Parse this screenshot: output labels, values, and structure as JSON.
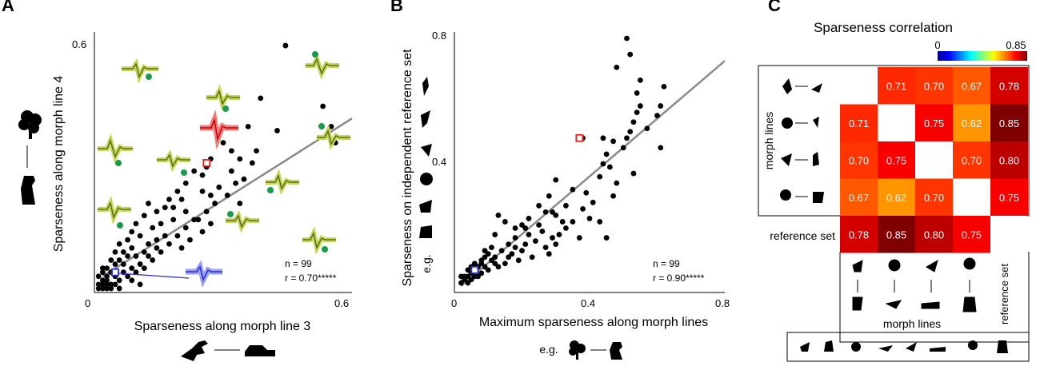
{
  "chart_data": [
    {
      "panel": "A",
      "type": "scatter",
      "xlabel": "Sparseness along morph line 3",
      "ylabel": "Sparseness along morph line 4",
      "xlim": [
        0,
        0.62
      ],
      "ylim": [
        0,
        0.62
      ],
      "x_ticks": [
        "0",
        "0.6"
      ],
      "y_ticks": [
        "0.6"
      ],
      "annotation_n": "n = 99",
      "annotation_r": "r = 0.70*****",
      "fit_line": {
        "x": [
          0.02,
          0.62
        ],
        "y": [
          0.04,
          0.43
        ]
      },
      "points": [
        [
          0.46,
          0.61
        ],
        [
          0.55,
          0.46
        ],
        [
          0.57,
          0.41
        ],
        [
          0.58,
          0.37
        ],
        [
          0.3,
          0.39
        ],
        [
          0.37,
          0.41
        ],
        [
          0.4,
          0.48
        ],
        [
          0.33,
          0.35
        ],
        [
          0.31,
          0.37
        ],
        [
          0.28,
          0.33
        ],
        [
          0.27,
          0.31
        ],
        [
          0.26,
          0.29
        ],
        [
          0.24,
          0.3
        ],
        [
          0.22,
          0.27
        ],
        [
          0.18,
          0.23
        ],
        [
          0.2,
          0.25
        ],
        [
          0.17,
          0.21
        ],
        [
          0.15,
          0.2
        ],
        [
          0.13,
          0.22
        ],
        [
          0.12,
          0.19
        ],
        [
          0.1,
          0.17
        ],
        [
          0.09,
          0.15
        ],
        [
          0.08,
          0.13
        ],
        [
          0.06,
          0.12
        ],
        [
          0.05,
          0.1
        ],
        [
          0.04,
          0.08
        ],
        [
          0.03,
          0.06
        ],
        [
          0.02,
          0.05
        ],
        [
          0.01,
          0.02
        ],
        [
          0.02,
          0.01
        ],
        [
          0.03,
          0.03
        ],
        [
          0.04,
          0.02
        ],
        [
          0.05,
          0.04
        ],
        [
          0.06,
          0.03
        ],
        [
          0.07,
          0.05
        ],
        [
          0.08,
          0.04
        ],
        [
          0.09,
          0.06
        ],
        [
          0.1,
          0.05
        ],
        [
          0.11,
          0.07
        ],
        [
          0.12,
          0.06
        ],
        [
          0.13,
          0.09
        ],
        [
          0.14,
          0.08
        ],
        [
          0.15,
          0.11
        ],
        [
          0.16,
          0.1
        ],
        [
          0.18,
          0.12
        ],
        [
          0.2,
          0.14
        ],
        [
          0.21,
          0.11
        ],
        [
          0.22,
          0.16
        ],
        [
          0.23,
          0.13
        ],
        [
          0.25,
          0.18
        ],
        [
          0.26,
          0.15
        ],
        [
          0.27,
          0.2
        ],
        [
          0.28,
          0.17
        ],
        [
          0.29,
          0.22
        ],
        [
          0.32,
          0.24
        ],
        [
          0.34,
          0.27
        ],
        [
          0.35,
          0.22
        ],
        [
          0.36,
          0.28
        ],
        [
          0.38,
          0.32
        ],
        [
          0.21,
          0.23
        ],
        [
          0.19,
          0.21
        ],
        [
          0.16,
          0.17
        ],
        [
          0.14,
          0.16
        ],
        [
          0.11,
          0.14
        ],
        [
          0.09,
          0.11
        ],
        [
          0.07,
          0.1
        ],
        [
          0.06,
          0.08
        ],
        [
          0.05,
          0.07
        ],
        [
          0.04,
          0.05
        ],
        [
          0.03,
          0.04
        ],
        [
          0.02,
          0.03
        ],
        [
          0.01,
          0.04
        ],
        [
          0.03,
          0.02
        ],
        [
          0.04,
          0.01
        ],
        [
          0.05,
          0.02
        ],
        [
          0.06,
          0.01
        ],
        [
          0.02,
          0.02
        ],
        [
          0.01,
          0.01
        ],
        [
          0.03,
          0.01
        ],
        [
          0.02,
          0.06
        ],
        [
          0.08,
          0.09
        ],
        [
          0.12,
          0.1
        ],
        [
          0.17,
          0.14
        ],
        [
          0.24,
          0.18
        ],
        [
          0.3,
          0.26
        ],
        [
          0.33,
          0.3
        ],
        [
          0.39,
          0.35
        ],
        [
          0.44,
          0.4
        ],
        [
          0.26,
          0.25
        ],
        [
          0.19,
          0.18
        ],
        [
          0.15,
          0.13
        ],
        [
          0.13,
          0.12
        ],
        [
          0.1,
          0.09
        ],
        [
          0.07,
          0.07
        ],
        [
          0.22,
          0.2
        ],
        [
          0.28,
          0.24
        ],
        [
          0.35,
          0.33
        ],
        [
          0.09,
          0.03
        ],
        [
          0.11,
          0.02
        ]
      ],
      "highlight_red": [
        0.27,
        0.32
      ],
      "highlight_blue": [
        0.05,
        0.05
      ]
    },
    {
      "panel": "B",
      "type": "scatter",
      "xlabel": "Maximum sparseness along morph lines",
      "ylabel": "Sparseness on independent reference set",
      "ylabel2": "e.g.",
      "xlabel2": "e.g.",
      "xlim": [
        0,
        0.8
      ],
      "ylim": [
        0,
        0.8
      ],
      "x_ticks": [
        "0",
        "0.4",
        "0.8"
      ],
      "y_ticks": [
        "0.4",
        "0.8"
      ],
      "annotation_n": "n = 99",
      "annotation_r": "r = 0.90*****",
      "fit_line": {
        "x": [
          0.02,
          0.8
        ],
        "y": [
          0.02,
          0.72
        ]
      },
      "points": [
        [
          0.51,
          0.79
        ],
        [
          0.52,
          0.74
        ],
        [
          0.48,
          0.7
        ],
        [
          0.55,
          0.66
        ],
        [
          0.62,
          0.64
        ],
        [
          0.54,
          0.62
        ],
        [
          0.55,
          0.58
        ],
        [
          0.54,
          0.56
        ],
        [
          0.53,
          0.53
        ],
        [
          0.61,
          0.58
        ],
        [
          0.6,
          0.55
        ],
        [
          0.52,
          0.5
        ],
        [
          0.51,
          0.48
        ],
        [
          0.61,
          0.45
        ],
        [
          0.38,
          0.48
        ],
        [
          0.44,
          0.48
        ],
        [
          0.47,
          0.47
        ],
        [
          0.45,
          0.43
        ],
        [
          0.44,
          0.4
        ],
        [
          0.43,
          0.36
        ],
        [
          0.53,
          0.37
        ],
        [
          0.48,
          0.34
        ],
        [
          0.47,
          0.3
        ],
        [
          0.35,
          0.32
        ],
        [
          0.3,
          0.35
        ],
        [
          0.28,
          0.3
        ],
        [
          0.25,
          0.27
        ],
        [
          0.27,
          0.25
        ],
        [
          0.3,
          0.24
        ],
        [
          0.32,
          0.22
        ],
        [
          0.41,
          0.28
        ],
        [
          0.38,
          0.26
        ],
        [
          0.43,
          0.22
        ],
        [
          0.45,
          0.17
        ],
        [
          0.3,
          0.15
        ],
        [
          0.29,
          0.17
        ],
        [
          0.22,
          0.23
        ],
        [
          0.2,
          0.21
        ],
        [
          0.18,
          0.2
        ],
        [
          0.15,
          0.22
        ],
        [
          0.13,
          0.24
        ],
        [
          0.12,
          0.18
        ],
        [
          0.11,
          0.14
        ],
        [
          0.1,
          0.12
        ],
        [
          0.09,
          0.11
        ],
        [
          0.08,
          0.09
        ],
        [
          0.07,
          0.08
        ],
        [
          0.06,
          0.07
        ],
        [
          0.05,
          0.06
        ],
        [
          0.04,
          0.05
        ],
        [
          0.03,
          0.04
        ],
        [
          0.02,
          0.03
        ],
        [
          0.04,
          0.07
        ],
        [
          0.06,
          0.09
        ],
        [
          0.08,
          0.1
        ],
        [
          0.09,
          0.13
        ],
        [
          0.12,
          0.11
        ],
        [
          0.14,
          0.13
        ],
        [
          0.16,
          0.15
        ],
        [
          0.17,
          0.12
        ],
        [
          0.18,
          0.17
        ],
        [
          0.19,
          0.1
        ],
        [
          0.2,
          0.13
        ],
        [
          0.21,
          0.15
        ],
        [
          0.22,
          0.18
        ],
        [
          0.23,
          0.11
        ],
        [
          0.24,
          0.16
        ],
        [
          0.26,
          0.19
        ],
        [
          0.27,
          0.14
        ],
        [
          0.28,
          0.12
        ],
        [
          0.31,
          0.18
        ],
        [
          0.33,
          0.2
        ],
        [
          0.35,
          0.22
        ],
        [
          0.37,
          0.17
        ],
        [
          0.4,
          0.23
        ],
        [
          0.15,
          0.09
        ],
        [
          0.13,
          0.08
        ],
        [
          0.11,
          0.1
        ],
        [
          0.1,
          0.07
        ],
        [
          0.08,
          0.06
        ],
        [
          0.07,
          0.05
        ],
        [
          0.05,
          0.04
        ],
        [
          0.04,
          0.03
        ],
        [
          0.03,
          0.05
        ],
        [
          0.06,
          0.05
        ],
        [
          0.09,
          0.08
        ],
        [
          0.12,
          0.09
        ],
        [
          0.16,
          0.11
        ],
        [
          0.18,
          0.14
        ],
        [
          0.21,
          0.2
        ],
        [
          0.25,
          0.21
        ],
        [
          0.29,
          0.25
        ],
        [
          0.33,
          0.27
        ],
        [
          0.39,
          0.31
        ],
        [
          0.46,
          0.39
        ],
        [
          0.5,
          0.45
        ],
        [
          0.57,
          0.51
        ],
        [
          0.02,
          0.05
        ],
        [
          0.05,
          0.08
        ]
      ],
      "highlight_red": [
        0.37,
        0.48
      ],
      "highlight_blue": [
        0.06,
        0.07
      ]
    },
    {
      "panel": "C",
      "type": "heatmap",
      "title": "Sparseness correlation",
      "colorbar_min": "0",
      "colorbar_max": "0.85",
      "row_axis_label": "morph lines",
      "col_axis_label": "morph lines",
      "ref_row_label": "reference set",
      "ref_col_label": "reference set",
      "values": [
        [
          null,
          0.71,
          0.7,
          0.67,
          0.78
        ],
        [
          0.71,
          null,
          0.75,
          0.62,
          0.85
        ],
        [
          0.7,
          0.75,
          null,
          0.7,
          0.8
        ],
        [
          0.67,
          0.62,
          0.7,
          null,
          0.75
        ],
        [
          0.78,
          0.85,
          0.8,
          0.75,
          null
        ]
      ],
      "labels": [
        [
          "",
          "0.71",
          "0.70",
          "0.67",
          "0.78"
        ],
        [
          "0.71",
          "",
          "0.75",
          "0.62",
          "0.85"
        ],
        [
          "0.70",
          "0.75",
          "",
          "0.70",
          "0.80"
        ],
        [
          "0.67",
          "0.62",
          "0.70",
          "",
          "0.75"
        ],
        [
          "0.78",
          "0.85",
          "0.80",
          "0.75",
          ""
        ]
      ]
    }
  ],
  "panel_letters": [
    "A",
    "B",
    "C"
  ],
  "colors": {
    "fit": "#8a8a8a",
    "point": "#000000",
    "red": "#e8201e",
    "blue": "#2a2ad8",
    "green": "#1a9a4a",
    "waveform": "#9bbb3c"
  }
}
